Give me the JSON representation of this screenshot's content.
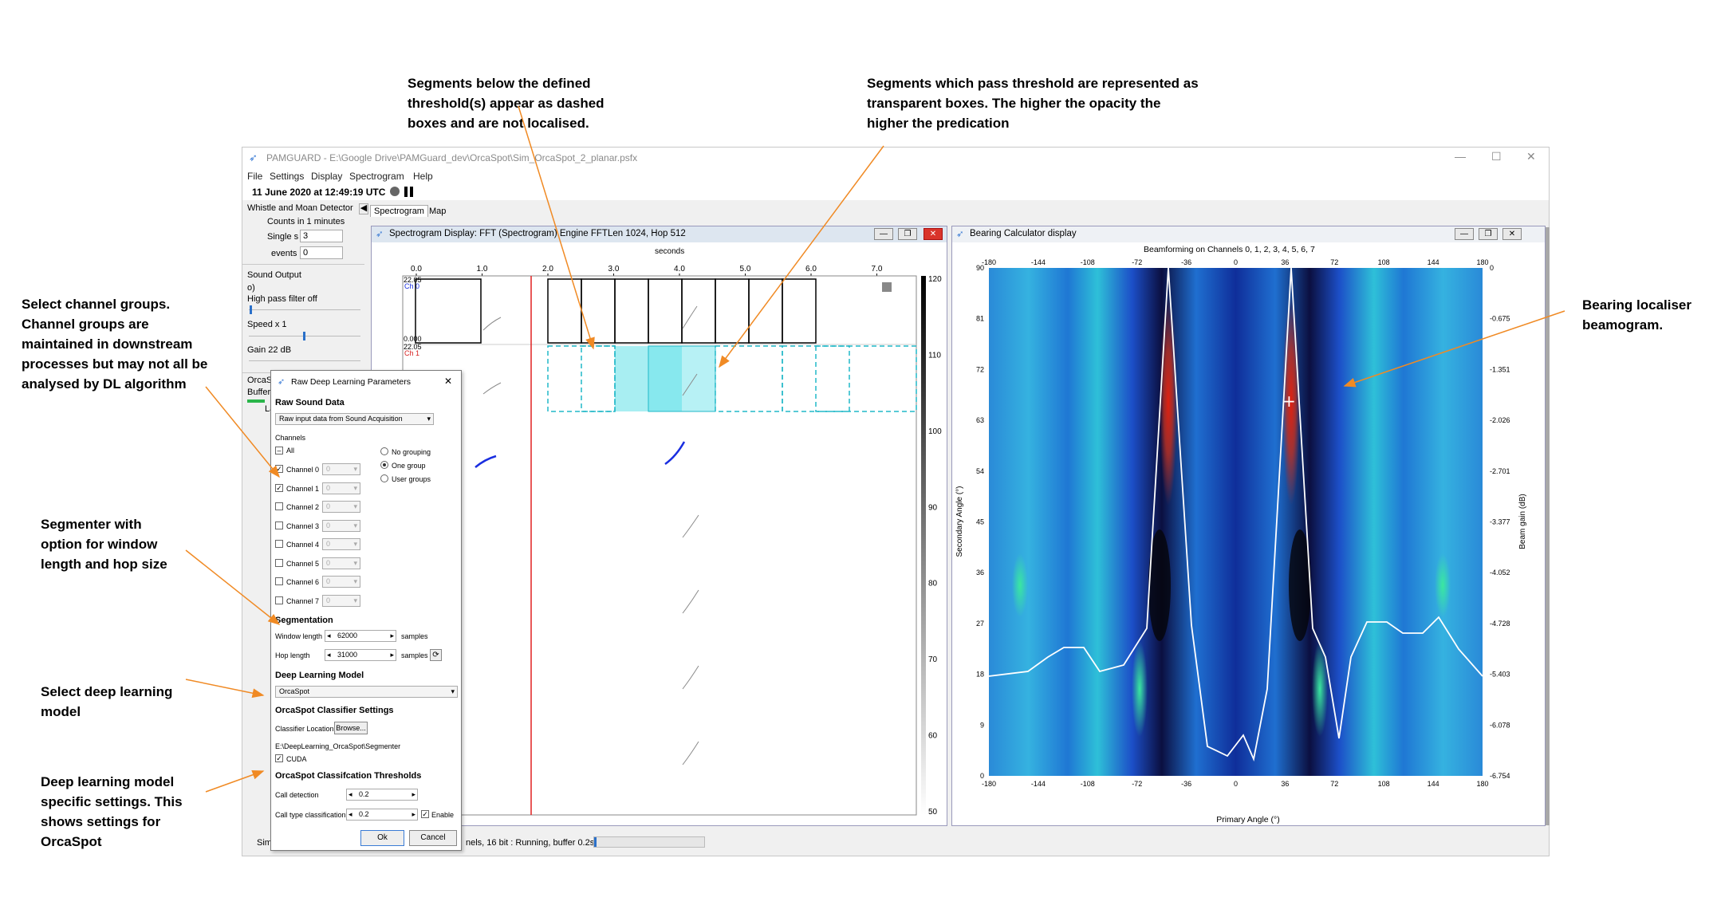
{
  "annotations": {
    "dashed": "Segments below the defined\nthreshold(s) appear as dashed\nboxes and are not localised.",
    "transparent": "Segments which pass threshold are represented as\ntransparent boxes. The higher the opacity the\nhigher the predication",
    "channels": "Select channel groups.\nChannel groups are\nmaintained in downstream\nprocesses but may not all be\nanalysed by DL algorithm",
    "segmenter": "Segmenter with\noption for window\nlength and hop size",
    "model": "Select deep learning\nmodel",
    "specific": "Deep learning model\nspecific settings. This\nshows settings for\nOrcaSpot",
    "bearing": "Bearing localiser\nbeamogram."
  },
  "window": {
    "title": "PAMGUARD - E:\\Google Drive\\PAMGuard_dev\\OrcaSpot\\Sim_OrcaSpot_2_planar.psfx",
    "menu": [
      "File",
      "Settings",
      "Display",
      "Spectrogram",
      "Help"
    ],
    "datetime": "11 June 2020 at 12:49:19 UTC",
    "tabs": [
      "Spectrogram",
      "Map"
    ],
    "footer_status_prefix": "Sim",
    "footer_status": "nels, 16 bit : Running, buffer 0.2s"
  },
  "side_panel": {
    "whistle_title": "Whistle and Moan Detector",
    "counts_label": "Counts in 1 minutes",
    "single_label": "Single s",
    "single_value": "3",
    "events_label": "events",
    "events_value": "0",
    "sound_output": "Sound Output",
    "zero": "o)",
    "high_pass": "High pass filter off",
    "speed": "Speed  x 1",
    "gain": "Gain 22 dB",
    "orca_short": "OrcaS",
    "buffer_short": "Buffer",
    "la_short": "La"
  },
  "spectrogram": {
    "title": "Spectrogram Display: FFT (Spectrogram) Engine FFTLen 1024, Hop 512",
    "xlabel": "seconds",
    "x_ticks": [
      "0.0",
      "1.0",
      "2.0",
      "3.0",
      "4.0",
      "5.0",
      "6.0",
      "7.0"
    ],
    "ch0": "Ch 0",
    "ch1": "Ch 1",
    "freq_top": "22.05",
    "freq_zero": "0.000",
    "freq_top2": "22.05",
    "colorbar_ticks": [
      "120",
      "110",
      "100",
      "90",
      "80",
      "70",
      "60",
      "50"
    ]
  },
  "bearing": {
    "title": "Bearing Calculator display",
    "plot_title": "Beamforming on Channels 0, 1, 2, 3, 4, 5, 6, 7",
    "x_ticks": [
      "-180",
      "-144",
      "-108",
      "-72",
      "-36",
      "0",
      "36",
      "72",
      "108",
      "144",
      "180"
    ],
    "y_ticks": [
      "0",
      "9",
      "18",
      "27",
      "36",
      "45",
      "54",
      "63",
      "72",
      "81",
      "90"
    ],
    "right_ticks": [
      "0",
      "-0.675",
      "-1.351",
      "-2.026",
      "-2.701",
      "-3.377",
      "-4.052",
      "-4.728",
      "-5.403",
      "-6.078",
      "-6.754"
    ],
    "xlabel": "Primary Angle (°)",
    "ylabel": "Secondary Angle (°)",
    "rlabel": "Beam gain (dB)"
  },
  "dialog": {
    "title": "Raw Deep Learning Parameters",
    "close": "✕",
    "raw_sound": "Raw Sound Data",
    "source": "Raw input data from Sound Acquisition",
    "channels_label": "Channels",
    "all": "All",
    "channels": [
      {
        "label": "Channel 0",
        "checked": true
      },
      {
        "label": "Channel 1",
        "checked": true
      },
      {
        "label": "Channel 2",
        "checked": false
      },
      {
        "label": "Channel 3",
        "checked": false
      },
      {
        "label": "Channel 4",
        "checked": false
      },
      {
        "label": "Channel 5",
        "checked": false
      },
      {
        "label": "Channel 6",
        "checked": false
      },
      {
        "label": "Channel 7",
        "checked": false
      }
    ],
    "channel_group_value": "0",
    "grouping": [
      "No grouping",
      "One group",
      "User groups"
    ],
    "segmentation": "Segmentation",
    "window_length_label": "Window length",
    "window_length": "62000",
    "hop_length_label": "Hop length",
    "hop_length": "31000",
    "samples": "samples",
    "dl_model": "Deep Learning Model",
    "model_value": "OrcaSpot",
    "classifier_settings": "OrcaSpot Classifier Settings",
    "classifier_location": "Classifier Location:",
    "browse": "Browse...",
    "path": "E:\\DeepLearning_OrcaSpot\\Segmenter",
    "cuda": "CUDA",
    "thresholds": "OrcaSpot Classifcation Thresholds",
    "call_detection": "Call detection",
    "call_detection_value": "0.2",
    "call_type": "Call type classification",
    "call_type_value": "0.2",
    "enable": "Enable",
    "ok": "Ok",
    "cancel": "Cancel"
  }
}
